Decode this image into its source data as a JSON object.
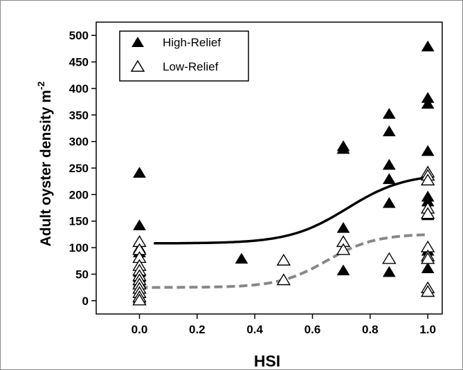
{
  "chart_data": {
    "type": "scatter",
    "title": "",
    "xlabel": "HSI",
    "ylabel": "Adult oyster density m",
    "ylabel_sup": "-2",
    "xlim": [
      -0.15,
      1.05
    ],
    "ylim": [
      -25,
      525
    ],
    "x_ticks": [
      "0.0",
      "0.2",
      "0.4",
      "0.6",
      "0.8",
      "1.0"
    ],
    "y_ticks": [
      "0",
      "50",
      "100",
      "150",
      "200",
      "250",
      "300",
      "350",
      "400",
      "450",
      "500"
    ],
    "grid": false,
    "legend_position": "top-left",
    "series": [
      {
        "name": "High-Relief",
        "marker": "filled-triangle",
        "color": "#000000",
        "points": [
          [
            0.0,
            242
          ],
          [
            0.0,
            143
          ],
          [
            0.0,
            100
          ],
          [
            0.0,
            92
          ],
          [
            0.0,
            55
          ],
          [
            0.0,
            45
          ],
          [
            0.0,
            35
          ],
          [
            0.0,
            25
          ],
          [
            0.0,
            15
          ],
          [
            0.0,
            5
          ],
          [
            0.354,
            80
          ],
          [
            0.707,
            292
          ],
          [
            0.707,
            287
          ],
          [
            0.707,
            138
          ],
          [
            0.707,
            97
          ],
          [
            0.707,
            58
          ],
          [
            0.866,
            353
          ],
          [
            0.866,
            320
          ],
          [
            0.866,
            257
          ],
          [
            0.866,
            230
          ],
          [
            0.866,
            185
          ],
          [
            0.866,
            55
          ],
          [
            1.0,
            480
          ],
          [
            1.0,
            383
          ],
          [
            1.0,
            372
          ],
          [
            1.0,
            283
          ],
          [
            1.0,
            228
          ],
          [
            1.0,
            197
          ],
          [
            1.0,
            188
          ],
          [
            1.0,
            175
          ],
          [
            1.0,
            162
          ],
          [
            1.0,
            95
          ],
          [
            1.0,
            62
          ]
        ]
      },
      {
        "name": "Low-Relief",
        "marker": "open-triangle",
        "color": "#000000",
        "points": [
          [
            0.0,
            112
          ],
          [
            0.0,
            97
          ],
          [
            0.0,
            82
          ],
          [
            0.0,
            67
          ],
          [
            0.0,
            58
          ],
          [
            0.0,
            48
          ],
          [
            0.0,
            40
          ],
          [
            0.0,
            32
          ],
          [
            0.0,
            24
          ],
          [
            0.0,
            16
          ],
          [
            0.0,
            8
          ],
          [
            0.0,
            2
          ],
          [
            0.5,
            77
          ],
          [
            0.5,
            40
          ],
          [
            0.707,
            112
          ],
          [
            0.707,
            97
          ],
          [
            0.866,
            80
          ],
          [
            1.0,
            243
          ],
          [
            1.0,
            237
          ],
          [
            1.0,
            228
          ],
          [
            1.0,
            175
          ],
          [
            1.0,
            165
          ],
          [
            1.0,
            102
          ],
          [
            1.0,
            85
          ],
          [
            1.0,
            80
          ],
          [
            1.0,
            25
          ],
          [
            1.0,
            18
          ]
        ]
      }
    ],
    "fit_lines": [
      {
        "series": "High-Relief",
        "style": "solid",
        "color": "#000000",
        "low": 108,
        "high": 240,
        "mid": 0.72,
        "k": 10,
        "x_start": 0.05,
        "x_end": 1.0
      },
      {
        "series": "Low-Relief",
        "style": "dashed",
        "color": "#888888",
        "low": 25,
        "high": 126,
        "mid": 0.65,
        "k": 12,
        "x_start": 0.0,
        "x_end": 1.0
      }
    ]
  }
}
